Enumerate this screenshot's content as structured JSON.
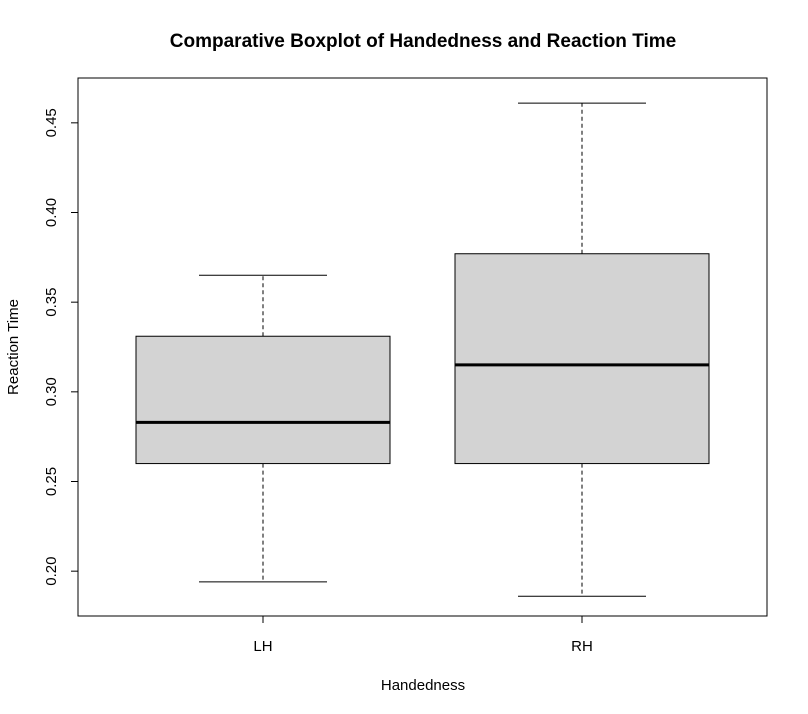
{
  "chart_data": {
    "type": "boxplot",
    "title": "Comparative Boxplot of Handedness and Reaction Time",
    "xlabel": "Handedness",
    "ylabel": "Reaction Time",
    "ylim": [
      0.175,
      0.475
    ],
    "yticks": [
      "0.20",
      "0.25",
      "0.30",
      "0.35",
      "0.40",
      "0.45"
    ],
    "box_fill": "#d3d3d3",
    "grid": false,
    "categories": [
      "LH",
      "RH"
    ],
    "boxes": [
      {
        "category": "LH",
        "min": 0.194,
        "q1": 0.26,
        "median": 0.283,
        "q3": 0.331,
        "max": 0.365
      },
      {
        "category": "RH",
        "min": 0.186,
        "q1": 0.26,
        "median": 0.315,
        "q3": 0.377,
        "max": 0.461
      }
    ]
  }
}
